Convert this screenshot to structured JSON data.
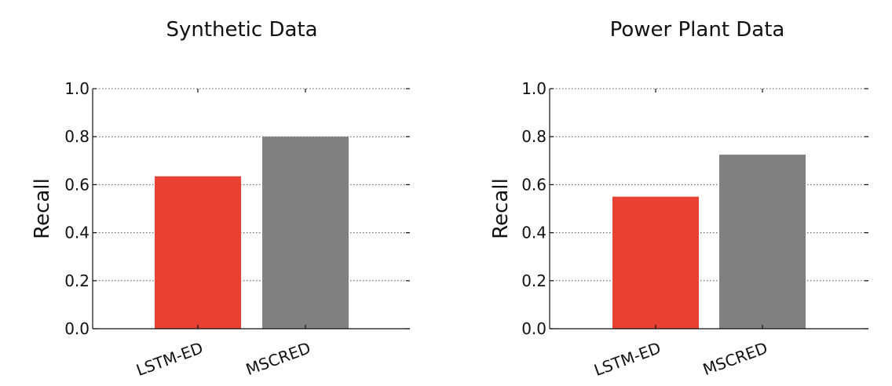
{
  "chart_data": [
    {
      "type": "bar",
      "title": "Synthetic Data",
      "xlabel": "",
      "ylabel": "Recall",
      "ylim": [
        0,
        1.0
      ],
      "yticks": [
        "0.0",
        "0.2",
        "0.4",
        "0.6",
        "0.8",
        "1.0"
      ],
      "categories": [
        "LSTM-ED",
        "MSCRED"
      ],
      "values": [
        0.635,
        0.8
      ],
      "colors": [
        "#e84133",
        "#808080"
      ],
      "grid": true
    },
    {
      "type": "bar",
      "title": "Power Plant Data",
      "xlabel": "",
      "ylabel": "Recall",
      "ylim": [
        0,
        1.0
      ],
      "yticks": [
        "0.0",
        "0.2",
        "0.4",
        "0.6",
        "0.8",
        "1.0"
      ],
      "categories": [
        "LSTM-ED",
        "MSCRED"
      ],
      "values": [
        0.55,
        0.725
      ],
      "colors": [
        "#e84133",
        "#808080"
      ],
      "grid": true
    }
  ]
}
